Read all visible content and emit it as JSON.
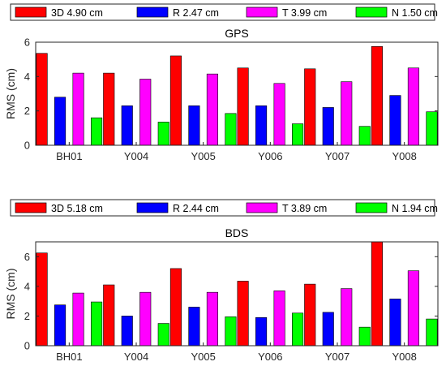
{
  "colors": {
    "3D": "#ff0000",
    "R": "#0000ff",
    "T": "#ff00ff",
    "N": "#00ff00"
  },
  "chart_data": [
    {
      "type": "bar",
      "title": "GPS",
      "ylabel": "RMS (cm)",
      "xlabel": "",
      "ylim": [
        0,
        6
      ],
      "yticks": [
        0,
        2,
        4,
        6
      ],
      "legend_placement": "top",
      "categories": [
        "BH01",
        "Y004",
        "Y005",
        "Y006",
        "Y007",
        "Y008"
      ],
      "series": [
        {
          "name": "3D 4.90 cm",
          "key": "3D",
          "values": [
            5.35,
            4.2,
            5.2,
            4.5,
            4.45,
            5.75
          ]
        },
        {
          "name": "R 2.47 cm",
          "key": "R",
          "values": [
            2.8,
            2.3,
            2.3,
            2.3,
            2.2,
            2.9
          ]
        },
        {
          "name": "T 3.99 cm",
          "key": "T",
          "values": [
            4.2,
            3.85,
            4.15,
            3.6,
            3.7,
            4.5
          ]
        },
        {
          "name": "N 1.50 cm",
          "key": "N",
          "values": [
            1.6,
            1.35,
            1.85,
            1.25,
            1.1,
            1.95
          ]
        }
      ]
    },
    {
      "type": "bar",
      "title": "BDS",
      "ylabel": "RMS (cm)",
      "xlabel": "",
      "ylim": [
        0,
        7
      ],
      "yticks": [
        0,
        2,
        4,
        6
      ],
      "legend_placement": "top",
      "categories": [
        "BH01",
        "Y004",
        "Y005",
        "Y006",
        "Y007",
        "Y008"
      ],
      "series": [
        {
          "name": "3D 5.18 cm",
          "key": "3D",
          "values": [
            6.25,
            4.1,
            5.2,
            4.35,
            4.15,
            7.2
          ]
        },
        {
          "name": "R 2.44 cm",
          "key": "R",
          "values": [
            2.75,
            2.0,
            2.6,
            1.9,
            2.25,
            3.15
          ]
        },
        {
          "name": "T 3.89 cm",
          "key": "T",
          "values": [
            3.55,
            3.6,
            3.6,
            3.7,
            3.85,
            5.05
          ]
        },
        {
          "name": "N 1.94 cm",
          "key": "N",
          "values": [
            2.95,
            1.5,
            1.95,
            2.2,
            1.25,
            1.8
          ]
        }
      ]
    }
  ]
}
